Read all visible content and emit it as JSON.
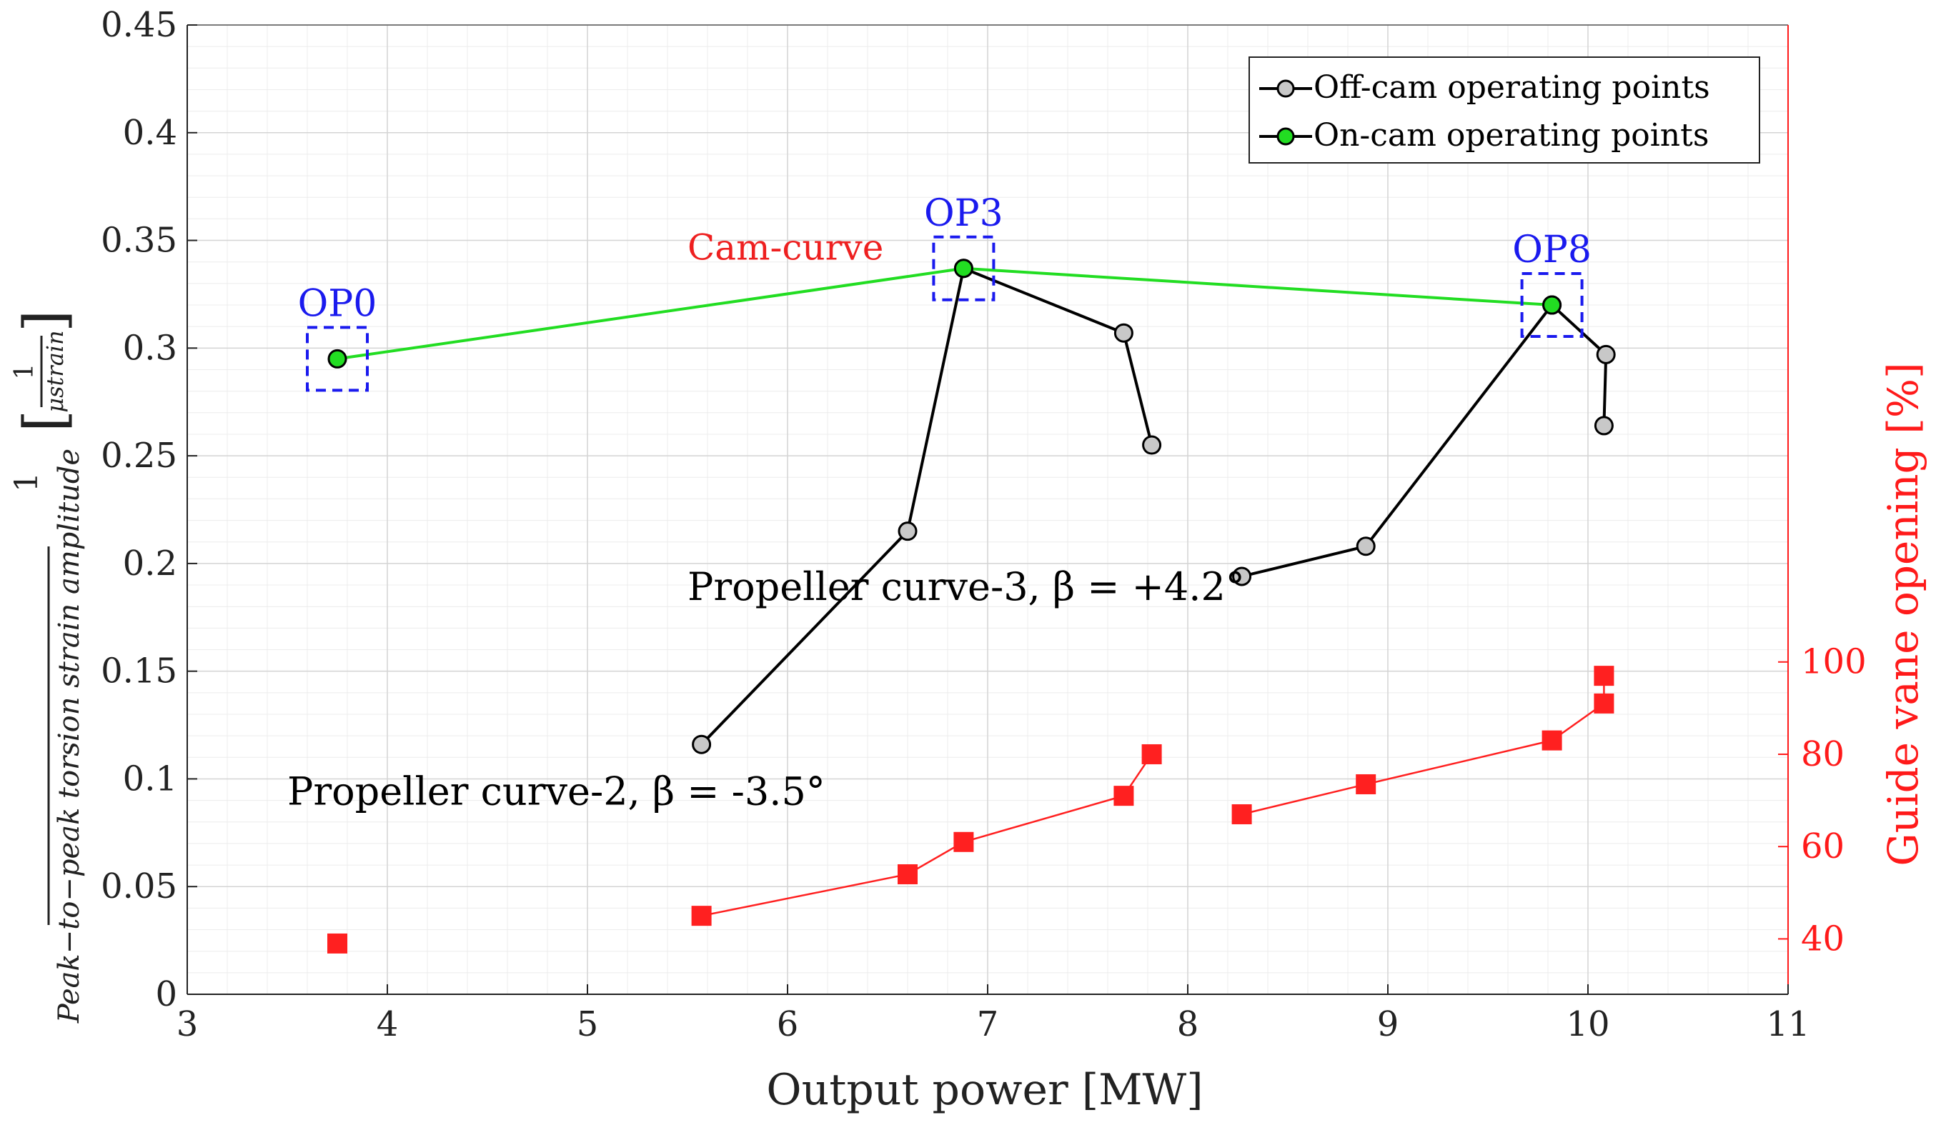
{
  "chart_data": {
    "type": "line",
    "xlabel": "Output power [MW]",
    "ylabel": {
      "fraction_numerator": "1",
      "fraction_denominator": "Peak−to−peak torsion strain amplitude",
      "unit_numerator": "1",
      "unit_denominator": "μstrain"
    },
    "y2label": "Guide vane opening [%]",
    "xlim": [
      3,
      11
    ],
    "ylim": [
      0,
      0.45
    ],
    "y2lim": [
      28,
      238
    ],
    "x_ticks": [
      3,
      4,
      5,
      6,
      7,
      8,
      9,
      10,
      11
    ],
    "y_ticks": [
      0,
      0.05,
      0.1,
      0.15,
      0.2,
      0.25,
      0.3,
      0.35,
      0.4,
      0.45
    ],
    "y2_ticks": [
      40,
      60,
      80,
      100
    ],
    "grid": true,
    "legend": {
      "position": "top-right",
      "entries": [
        {
          "label": "Off-cam operating points",
          "marker_color": "#c8c8c8"
        },
        {
          "label": "On-cam operating points",
          "marker_color": "#22dd22"
        }
      ]
    },
    "series": [
      {
        "name": "Propeller curve-2 (off-cam)",
        "axis": "left",
        "color": "#000000",
        "marker_color": "#c8c8c8",
        "points": [
          [
            5.57,
            0.116
          ],
          [
            6.6,
            0.215
          ],
          [
            6.88,
            0.337
          ],
          [
            7.68,
            0.307
          ],
          [
            7.82,
            0.255
          ]
        ]
      },
      {
        "name": "Propeller curve-3 (off-cam)",
        "axis": "left",
        "color": "#000000",
        "marker_color": "#c8c8c8",
        "points": [
          [
            8.27,
            0.194
          ],
          [
            8.89,
            0.208
          ],
          [
            9.82,
            0.32
          ],
          [
            10.09,
            0.297
          ],
          [
            10.08,
            0.264
          ]
        ]
      },
      {
        "name": "Cam-curve (on-cam)",
        "axis": "left",
        "color": "#22dd22",
        "marker_color": "#22dd22",
        "points": [
          [
            3.75,
            0.295
          ],
          [
            6.88,
            0.337
          ],
          [
            9.82,
            0.32
          ]
        ]
      },
      {
        "name": "Guide vane opening, curve-2",
        "axis": "right",
        "color": "#ff2020",
        "marker": "square",
        "points": [
          [
            5.57,
            45
          ],
          [
            6.6,
            54
          ],
          [
            6.88,
            61
          ],
          [
            7.68,
            71
          ],
          [
            7.82,
            80
          ]
        ]
      },
      {
        "name": "Guide vane opening, curve-3",
        "axis": "right",
        "color": "#ff2020",
        "marker": "square",
        "points": [
          [
            8.27,
            67
          ],
          [
            8.89,
            73.5
          ],
          [
            9.82,
            83
          ],
          [
            10.08,
            91
          ],
          [
            10.08,
            97
          ]
        ]
      },
      {
        "name": "Guide vane opening, OP0",
        "axis": "right",
        "color": "#ff2020",
        "marker": "square",
        "connected": false,
        "points": [
          [
            3.75,
            39
          ]
        ]
      }
    ],
    "annotations": [
      {
        "text": "OP0",
        "x": 3.75,
        "y": 0.295,
        "color": "#1a1aee"
      },
      {
        "text": "OP3",
        "x": 6.88,
        "y": 0.337,
        "color": "#1a1aee"
      },
      {
        "text": "OP8",
        "x": 9.82,
        "y": 0.32,
        "color": "#1a1aee"
      },
      {
        "text": "Cam-curve",
        "x": 5.0,
        "y": 0.341,
        "color": "#ee2020"
      },
      {
        "text": "Propeller curve-2, β = -3.5°",
        "x": 3.0,
        "y": 0.088,
        "color": "#000000"
      },
      {
        "text": "Propeller curve-3, β = +4.2°",
        "x": 5.0,
        "y": 0.183,
        "color": "#000000"
      }
    ]
  }
}
